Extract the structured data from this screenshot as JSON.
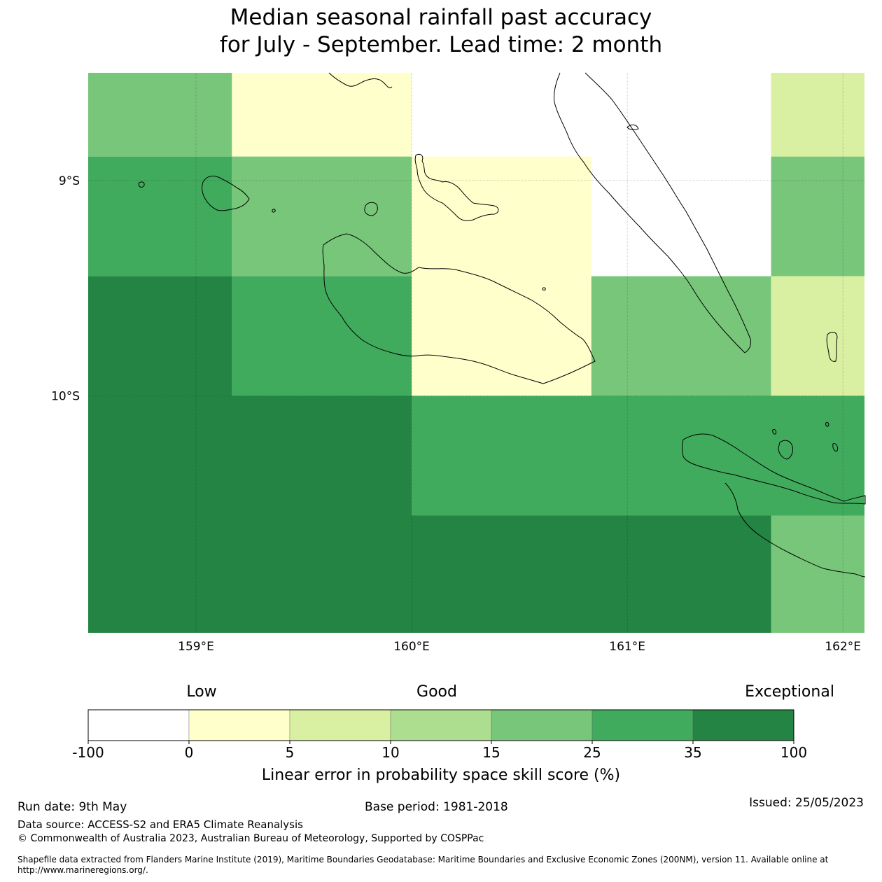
{
  "header": {
    "title_line1": "Median seasonal rainfall past accuracy",
    "title_line2": "for July - September. Lead time: 2 month"
  },
  "map": {
    "lon_range": [
      158.5,
      162.1
    ],
    "lat_range": [
      -11.1,
      -8.5
    ],
    "lon_ticks": [
      {
        "value": 159,
        "label": "159°E"
      },
      {
        "value": 160,
        "label": "160°E"
      },
      {
        "value": 161,
        "label": "161°E"
      },
      {
        "value": 162,
        "label": "162°E"
      }
    ],
    "lat_ticks": [
      {
        "value": -9,
        "label": "9°S"
      },
      {
        "value": -10,
        "label": "10°S"
      }
    ],
    "grid_cells": [
      {
        "lon0": 158.5,
        "lon1": 159.1667,
        "lat0": -8.5,
        "lat1": -8.8889,
        "category": 4
      },
      {
        "lon0": 159.1667,
        "lon1": 160.0,
        "lat0": -8.5,
        "lat1": -8.8889,
        "category": 1
      },
      {
        "lon0": 160.0,
        "lon1": 161.6667,
        "lat0": -8.5,
        "lat1": -8.8889,
        "category": 0
      },
      {
        "lon0": 161.6667,
        "lon1": 162.1,
        "lat0": -8.5,
        "lat1": -8.8889,
        "category": 2
      },
      {
        "lon0": 158.5,
        "lon1": 159.1667,
        "lat0": -8.8889,
        "lat1": -9.4444,
        "category": 5
      },
      {
        "lon0": 159.1667,
        "lon1": 160.0,
        "lat0": -8.8889,
        "lat1": -9.4444,
        "category": 4
      },
      {
        "lon0": 160.0,
        "lon1": 160.8333,
        "lat0": -8.8889,
        "lat1": -9.4444,
        "category": 1
      },
      {
        "lon0": 160.8333,
        "lon1": 161.6667,
        "lat0": -8.8889,
        "lat1": -9.4444,
        "category": 0
      },
      {
        "lon0": 161.6667,
        "lon1": 162.1,
        "lat0": -8.8889,
        "lat1": -9.4444,
        "category": 4
      },
      {
        "lon0": 158.5,
        "lon1": 159.1667,
        "lat0": -9.4444,
        "lat1": -10.0,
        "category": 6
      },
      {
        "lon0": 159.1667,
        "lon1": 160.0,
        "lat0": -9.4444,
        "lat1": -10.0,
        "category": 5
      },
      {
        "lon0": 160.0,
        "lon1": 160.8333,
        "lat0": -9.4444,
        "lat1": -10.0,
        "category": 1
      },
      {
        "lon0": 160.8333,
        "lon1": 161.6667,
        "lat0": -9.4444,
        "lat1": -10.0,
        "category": 4
      },
      {
        "lon0": 161.6667,
        "lon1": 162.1,
        "lat0": -9.4444,
        "lat1": -10.0,
        "category": 2
      },
      {
        "lon0": 158.5,
        "lon1": 160.0,
        "lat0": -10.0,
        "lat1": -10.5556,
        "category": 6
      },
      {
        "lon0": 160.0,
        "lon1": 162.1,
        "lat0": -10.0,
        "lat1": -10.5556,
        "category": 5
      },
      {
        "lon0": 158.5,
        "lon1": 161.6667,
        "lat0": -10.5556,
        "lat1": -11.1,
        "category": 6
      },
      {
        "lon0": 161.6667,
        "lon1": 162.1,
        "lat0": -10.5556,
        "lat1": -11.1,
        "category": 4
      }
    ]
  },
  "colorbar": {
    "low_label": "Low",
    "good_label": "Good",
    "exceptional_label": "Exceptional",
    "colors": [
      "#ffffff",
      "#ffffcc",
      "#d9f0a3",
      "#addd8e",
      "#78c679",
      "#41ab5d",
      "#238443"
    ],
    "boundaries": [
      "-100",
      "0",
      "5",
      "10",
      "15",
      "25",
      "35",
      "100"
    ],
    "axis_label": "Linear error in probability space skill score (%)"
  },
  "footer": {
    "run_date": "Run date: 9th May",
    "base_period": "Base period: 1981-2018",
    "issued": "Issued: 25/05/2023",
    "data_source": "Data source: ACCESS-S2 and ERA5 Climate Reanalysis",
    "copyright": "© Commonwealth of Australia 2023, Australian Bureau of Meteorology, Supported by COSPPac",
    "shapefile_note": "Shapefile data extracted from Flanders Marine Institute (2019), Maritime Boundaries Geodatabase: Maritime Boundaries and Exclusive Economic Zones (200NM), version 11. Available online at http://www.marineregions.org/."
  }
}
